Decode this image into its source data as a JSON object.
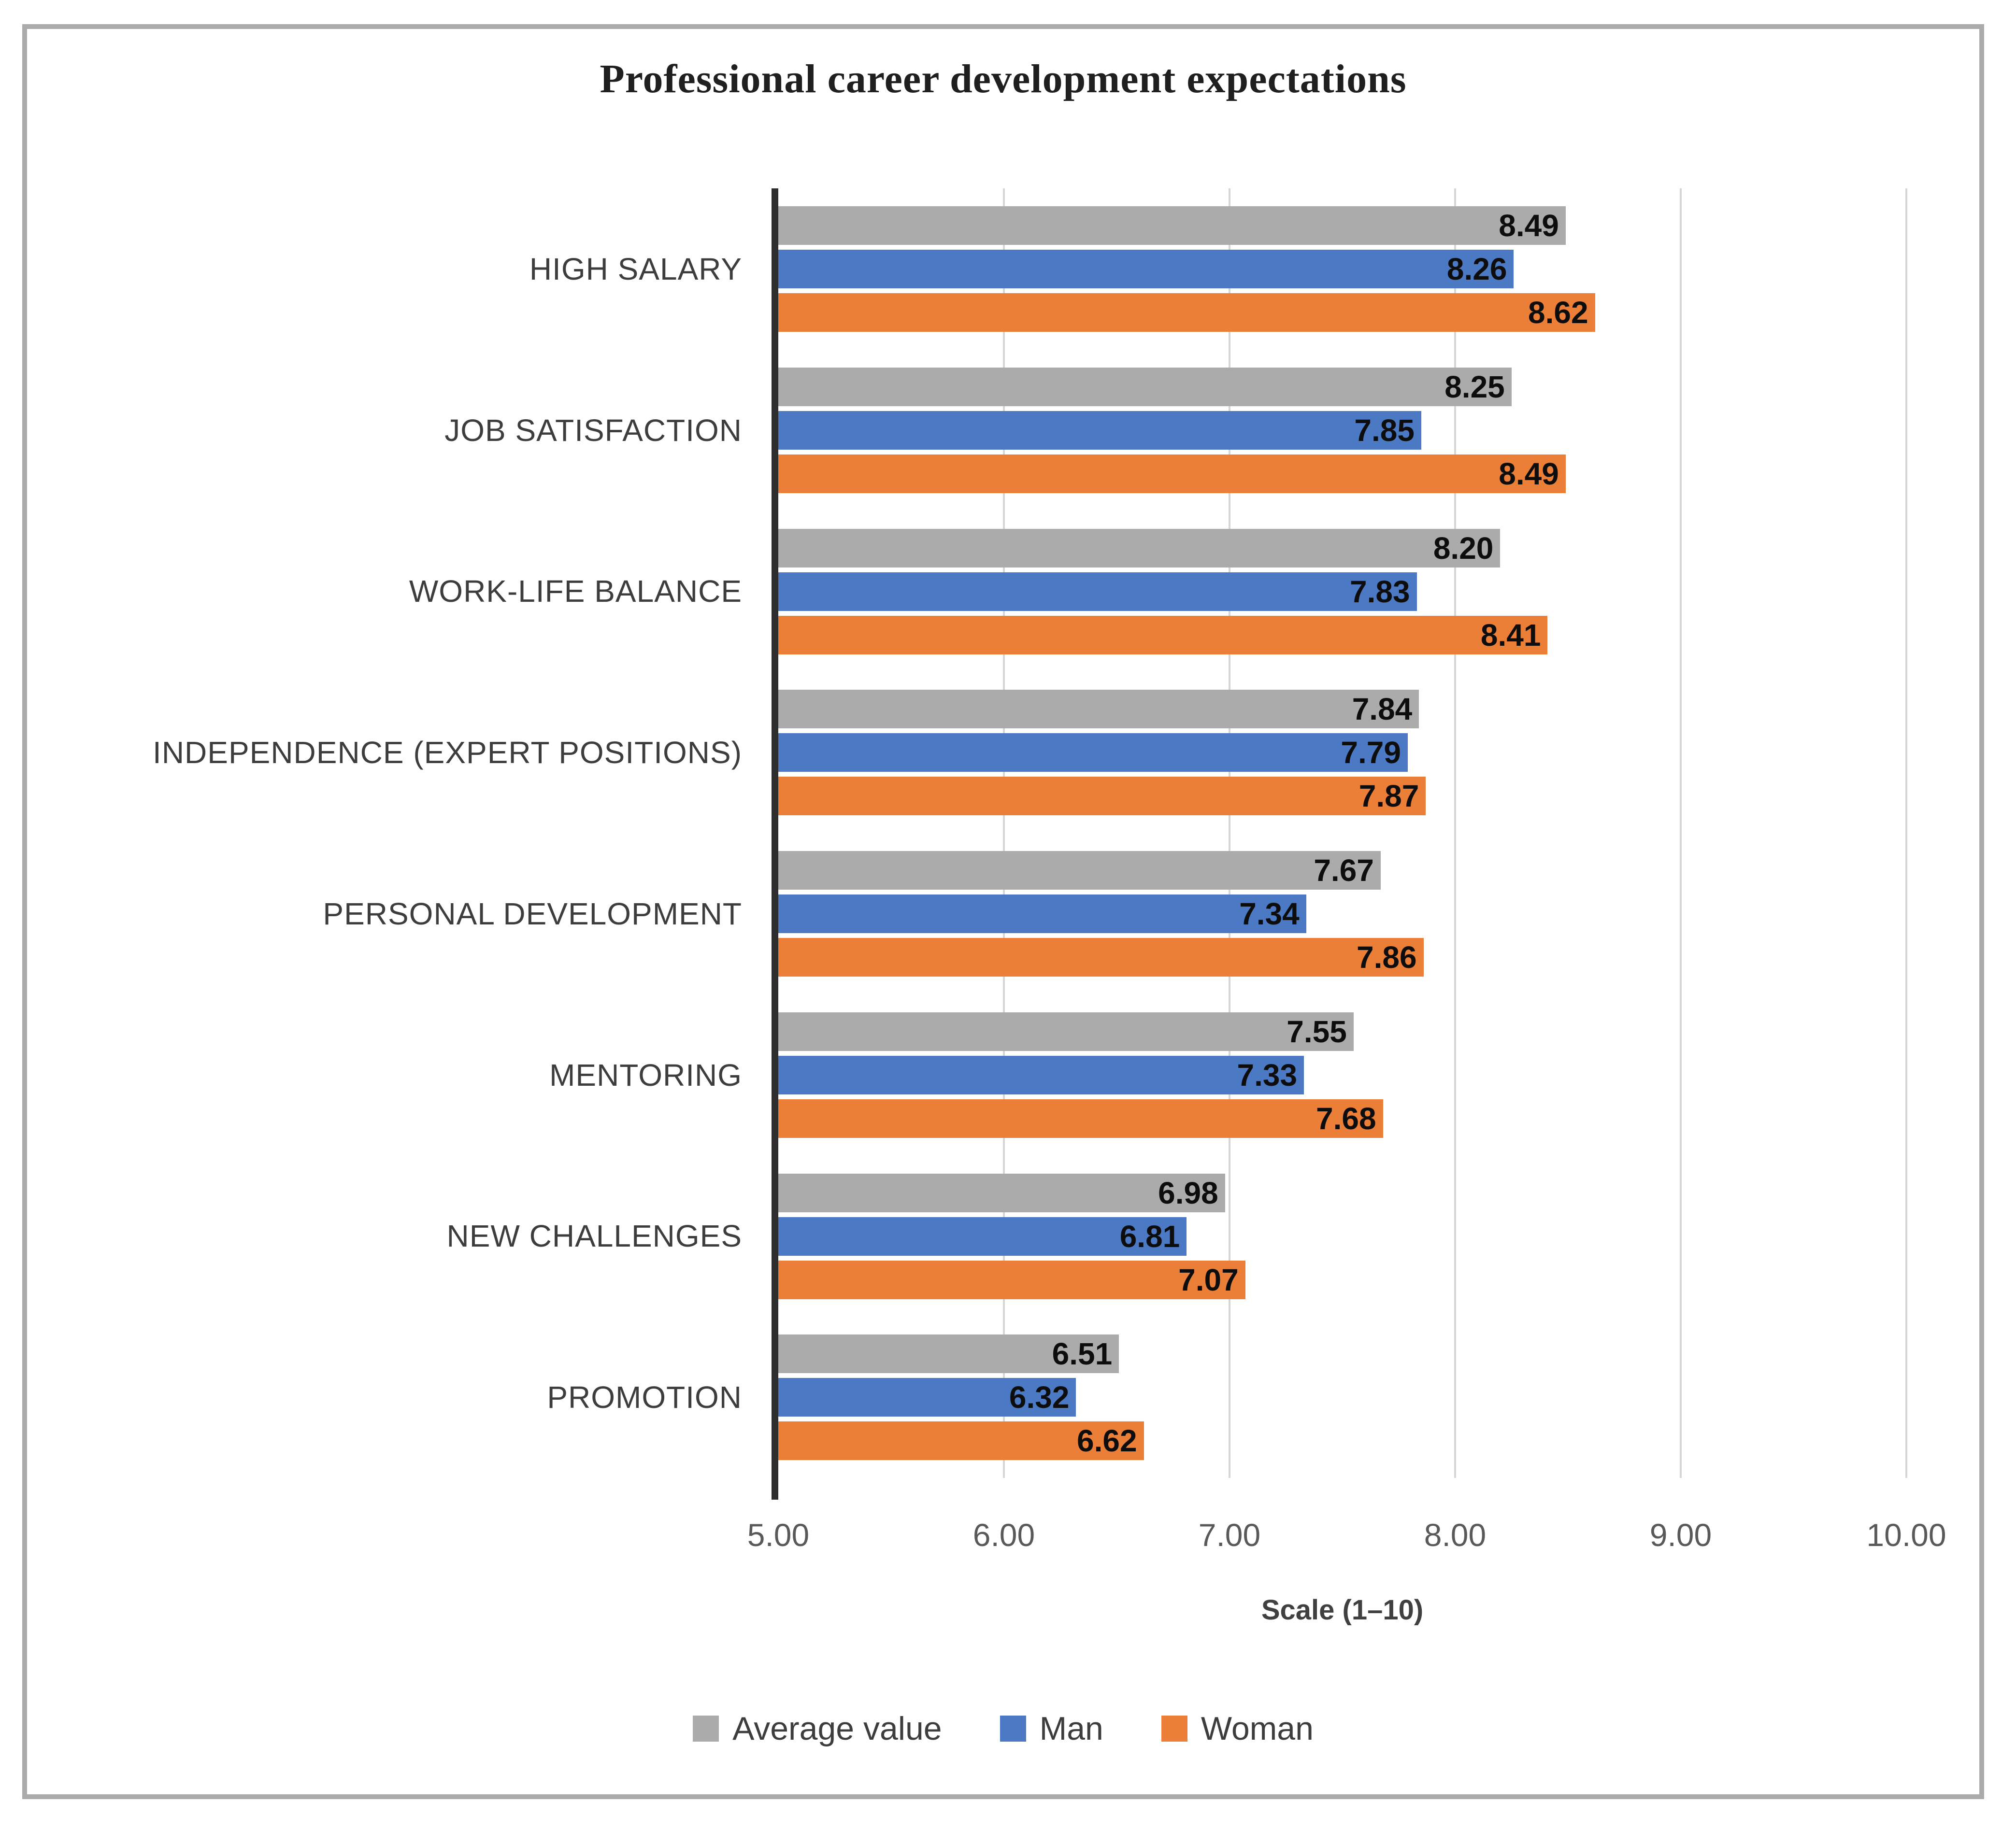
{
  "frame": {
    "border_color": "#ababab",
    "background": "#ffffff"
  },
  "title": "Professional career development expectations",
  "axis_x": {
    "tick_labels": [
      "5.00",
      "6.00",
      "7.00",
      "8.00",
      "9.00",
      "10.00"
    ],
    "title": "Scale (1–10)",
    "min": 5,
    "max": 10
  },
  "legend": {
    "items": [
      {
        "label": "Average value",
        "color": "#ababab"
      },
      {
        "label": "Man",
        "color": "#4c79c4"
      },
      {
        "label": "Woman",
        "color": "#ec7f38"
      }
    ]
  },
  "colors": {
    "gridline": "#d6d6d6",
    "axis_line": "#2e2e2e",
    "value_label": "#0d0d0d"
  },
  "chart_data": {
    "type": "bar",
    "orientation": "horizontal",
    "title": "Professional career development expectations",
    "xlabel": "Scale (1–10)",
    "xlim": [
      5,
      10
    ],
    "xticks": [
      5,
      6,
      7,
      8,
      9,
      10
    ],
    "grid": true,
    "legend_position": "bottom",
    "value_labels": true,
    "value_label_decimals": 2,
    "categories": [
      "HIGH SALARY",
      "JOB SATISFACTION",
      "WORK-LIFE BALANCE",
      "INDEPENDENCE (EXPERT POSITIONS)",
      "PERSONAL DEVELOPMENT",
      "MENTORING",
      "NEW CHALLENGES",
      "PROMOTION"
    ],
    "series": [
      {
        "name": "Average value",
        "color": "#ababab",
        "values": [
          8.49,
          8.25,
          8.2,
          7.84,
          7.67,
          7.55,
          6.98,
          6.51
        ]
      },
      {
        "name": "Man",
        "color": "#4c79c4",
        "values": [
          8.26,
          7.85,
          7.83,
          7.79,
          7.34,
          7.33,
          6.81,
          6.32
        ]
      },
      {
        "name": "Woman",
        "color": "#ec7f38",
        "values": [
          8.62,
          8.49,
          8.41,
          7.87,
          7.86,
          7.68,
          7.07,
          6.62
        ]
      }
    ]
  }
}
